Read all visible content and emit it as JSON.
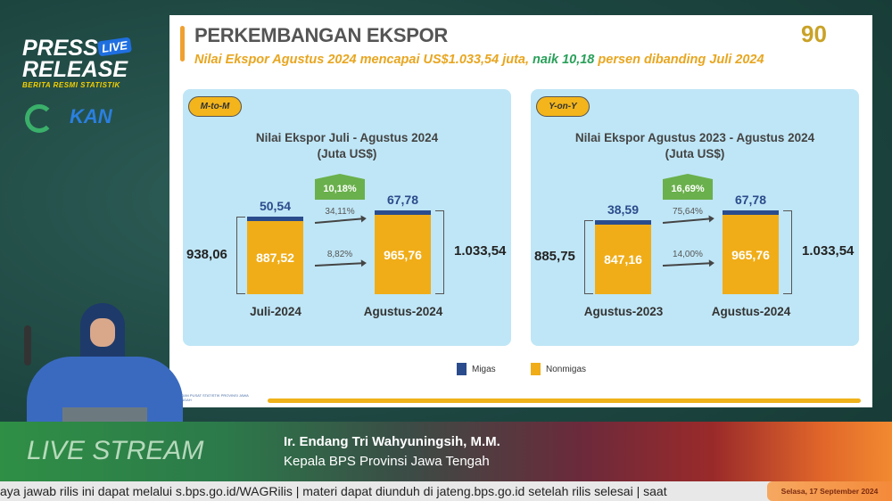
{
  "branding": {
    "press": "PRESS",
    "release": "RELEASE",
    "live_badge": "LIVE",
    "tagline": "BERITA RESMI STATISTIK",
    "kan_logo": "KAN",
    "anniversary_logo": "90"
  },
  "slide": {
    "title": "PERKEMBANGAN EKSPOR",
    "subtitle_a": "Nilai Ekspor Agustus 2024 mencapai US$1.033,54 juta, ",
    "subtitle_b": "naik 10,18",
    "subtitle_c": " persen dibanding Juli 2024",
    "footer_logo": "BADAN PUSAT STATISTIK PROVINSI JAWA TENGAH",
    "legend": [
      {
        "label": "Migas",
        "color": "#2b4c8c"
      },
      {
        "label": "Nonmigas",
        "color": "#f0ad18"
      }
    ]
  },
  "chart_data": [
    {
      "type": "bar",
      "stacked": true,
      "badge": "M-to-M",
      "title": "Nilai Ekspor Juli - Agustus 2024",
      "unit": "(Juta US$)",
      "categories": [
        "Juli-2024",
        "Agustus-2024"
      ],
      "series": [
        {
          "name": "Nonmigas",
          "values": [
            887.52,
            965.76
          ],
          "labels": [
            "887,52",
            "965,76"
          ]
        },
        {
          "name": "Migas",
          "values": [
            50.54,
            67.78
          ],
          "labels": [
            "50,54",
            "67,78"
          ]
        }
      ],
      "totals": [
        "938,06",
        "1.033,54"
      ],
      "growth_total": "10,18%",
      "growth_migas": "34,11%",
      "growth_nonmigas": "8,82%"
    },
    {
      "type": "bar",
      "stacked": true,
      "badge": "Y-on-Y",
      "title": "Nilai Ekspor Agustus 2023 - Agustus 2024",
      "unit": "(Juta US$)",
      "categories": [
        "Agustus-2023",
        "Agustus-2024"
      ],
      "series": [
        {
          "name": "Nonmigas",
          "values": [
            847.16,
            965.76
          ],
          "labels": [
            "847,16",
            "965,76"
          ]
        },
        {
          "name": "Migas",
          "values": [
            38.59,
            67.78
          ],
          "labels": [
            "38,59",
            "67,78"
          ]
        }
      ],
      "totals": [
        "885,75",
        "1.033,54"
      ],
      "growth_total": "16,69%",
      "growth_migas": "75,64%",
      "growth_nonmigas": "14,00%"
    }
  ],
  "lower_third": {
    "stream_label": "LIVE STREAM",
    "name": "Ir. Endang Tri Wahyuningsih, M.M.",
    "role": "Kepala BPS Provinsi Jawa Tengah"
  },
  "ticker": {
    "text": "aya jawab rilis ini dapat melalui s.bps.go.id/WAGRilis  |  materi dapat diunduh di jateng.bps.go.id setelah rilis selesai  |  saat",
    "date": "Selasa, 17 September 2024"
  }
}
